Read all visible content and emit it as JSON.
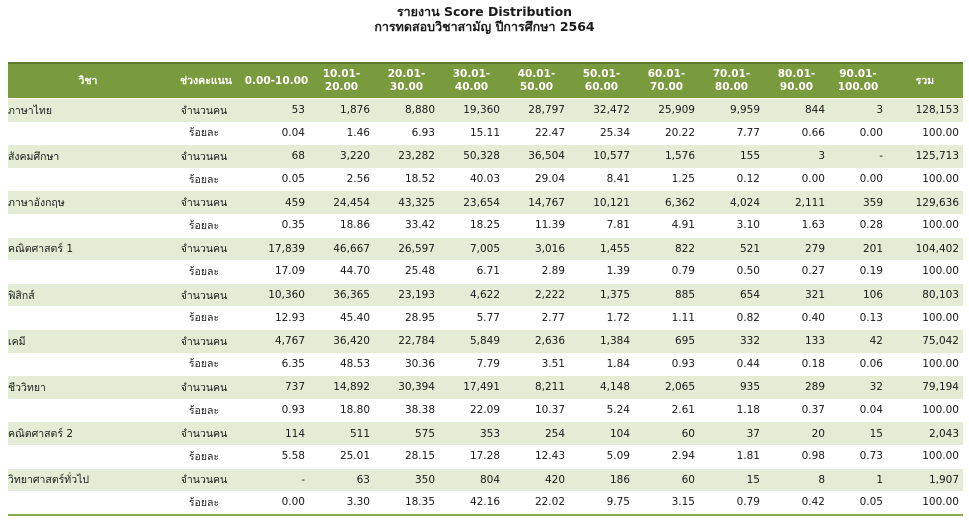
{
  "title": {
    "line1": "รายงาน Score Distribution",
    "line2": "การทดสอบวิชาสามัญ ปีการศึกษา 2564"
  },
  "table": {
    "headers": {
      "subject": "วิชา",
      "range_type": "ช่วงคะแนน",
      "ranges": [
        "0.00-10.00",
        "10.01-20.00",
        "20.01-30.00",
        "30.01-40.00",
        "40.01-50.00",
        "50.01-60.00",
        "60.01-70.00",
        "70.01-80.00",
        "80.01-90.00",
        "90.01-100.00"
      ],
      "total": "รวม"
    },
    "rows": [
      {
        "subject": "ภาษาไทย",
        "count_label": "จำนวนคน",
        "counts": [
          "53",
          "1,876",
          "8,880",
          "19,360",
          "28,797",
          "32,472",
          "25,909",
          "9,959",
          "844",
          "3"
        ],
        "count_total": "128,153",
        "pct_label": "ร้อยละ",
        "pcts": [
          "0.04",
          "1.46",
          "6.93",
          "15.11",
          "22.47",
          "25.34",
          "20.22",
          "7.77",
          "0.66",
          "0.00"
        ],
        "pct_total": "100.00"
      },
      {
        "subject": "สังคมศึกษา",
        "count_label": "จำนวนคน",
        "counts": [
          "68",
          "3,220",
          "23,282",
          "50,328",
          "36,504",
          "10,577",
          "1,576",
          "155",
          "3",
          "-"
        ],
        "count_total": "125,713",
        "pct_label": "ร้อยละ",
        "pcts": [
          "0.05",
          "2.56",
          "18.52",
          "40.03",
          "29.04",
          "8.41",
          "1.25",
          "0.12",
          "0.00",
          "0.00"
        ],
        "pct_total": "100.00"
      },
      {
        "subject": "ภาษาอังกฤษ",
        "count_label": "จำนวนคน",
        "counts": [
          "459",
          "24,454",
          "43,325",
          "23,654",
          "14,767",
          "10,121",
          "6,362",
          "4,024",
          "2,111",
          "359"
        ],
        "count_total": "129,636",
        "pct_label": "ร้อยละ",
        "pcts": [
          "0.35",
          "18.86",
          "33.42",
          "18.25",
          "11.39",
          "7.81",
          "4.91",
          "3.10",
          "1.63",
          "0.28"
        ],
        "pct_total": "100.00"
      },
      {
        "subject": "คณิตศาสตร์ 1",
        "count_label": "จำนวนคน",
        "counts": [
          "17,839",
          "46,667",
          "26,597",
          "7,005",
          "3,016",
          "1,455",
          "822",
          "521",
          "279",
          "201"
        ],
        "count_total": "104,402",
        "pct_label": "ร้อยละ",
        "pcts": [
          "17.09",
          "44.70",
          "25.48",
          "6.71",
          "2.89",
          "1.39",
          "0.79",
          "0.50",
          "0.27",
          "0.19"
        ],
        "pct_total": "100.00"
      },
      {
        "subject": "ฟิสิกส์",
        "count_label": "จำนวนคน",
        "counts": [
          "10,360",
          "36,365",
          "23,193",
          "4,622",
          "2,222",
          "1,375",
          "885",
          "654",
          "321",
          "106"
        ],
        "count_total": "80,103",
        "pct_label": "ร้อยละ",
        "pcts": [
          "12.93",
          "45.40",
          "28.95",
          "5.77",
          "2.77",
          "1.72",
          "1.11",
          "0.82",
          "0.40",
          "0.13"
        ],
        "pct_total": "100.00"
      },
      {
        "subject": "เคมี",
        "count_label": "จำนวนคน",
        "counts": [
          "4,767",
          "36,420",
          "22,784",
          "5,849",
          "2,636",
          "1,384",
          "695",
          "332",
          "133",
          "42"
        ],
        "count_total": "75,042",
        "pct_label": "ร้อยละ",
        "pcts": [
          "6.35",
          "48.53",
          "30.36",
          "7.79",
          "3.51",
          "1.84",
          "0.93",
          "0.44",
          "0.18",
          "0.06"
        ],
        "pct_total": "100.00"
      },
      {
        "subject": "ชีววิทยา",
        "count_label": "จำนวนคน",
        "counts": [
          "737",
          "14,892",
          "30,394",
          "17,491",
          "8,211",
          "4,148",
          "2,065",
          "935",
          "289",
          "32"
        ],
        "count_total": "79,194",
        "pct_label": "ร้อยละ",
        "pcts": [
          "0.93",
          "18.80",
          "38.38",
          "22.09",
          "10.37",
          "5.24",
          "2.61",
          "1.18",
          "0.37",
          "0.04"
        ],
        "pct_total": "100.00"
      },
      {
        "subject": "คณิตศาสตร์ 2",
        "count_label": "จำนวนคน",
        "counts": [
          "114",
          "511",
          "575",
          "353",
          "254",
          "104",
          "60",
          "37",
          "20",
          "15"
        ],
        "count_total": "2,043",
        "pct_label": "ร้อยละ",
        "pcts": [
          "5.58",
          "25.01",
          "28.15",
          "17.28",
          "12.43",
          "5.09",
          "2.94",
          "1.81",
          "0.98",
          "0.73"
        ],
        "pct_total": "100.00"
      },
      {
        "subject": "วิทยาศาสตร์ทั่วไป",
        "count_label": "จำนวนคน",
        "counts": [
          "-",
          "63",
          "350",
          "804",
          "420",
          "186",
          "60",
          "15",
          "8",
          "1"
        ],
        "count_total": "1,907",
        "pct_label": "ร้อยละ",
        "pcts": [
          "0.00",
          "3.30",
          "18.35",
          "42.16",
          "22.02",
          "9.75",
          "3.15",
          "0.79",
          "0.42",
          "0.05"
        ],
        "pct_total": "100.00"
      }
    ]
  }
}
